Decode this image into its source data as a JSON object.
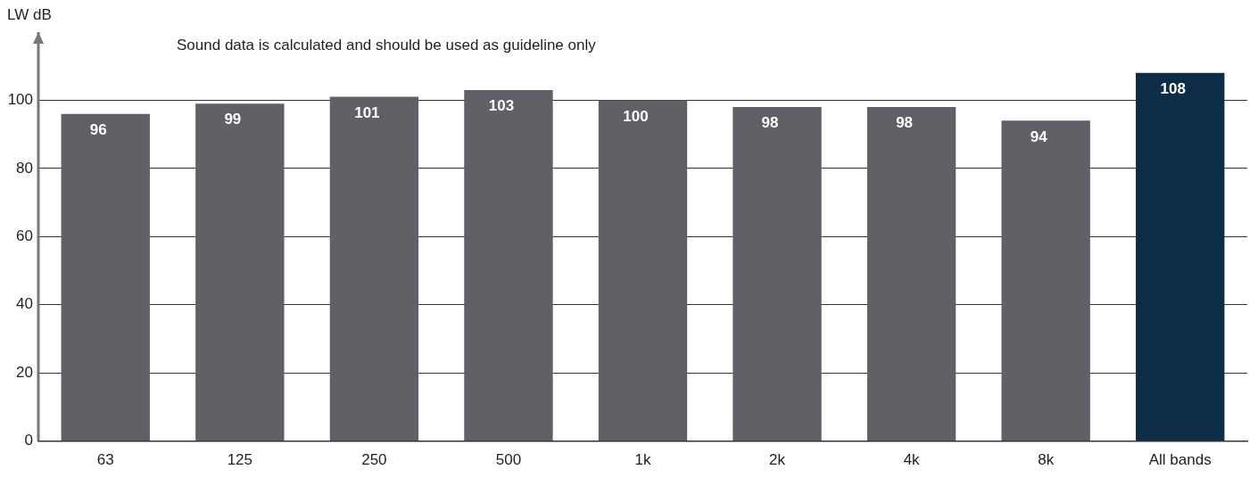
{
  "chart_data": {
    "type": "bar",
    "ylabel": "LW dB",
    "annotations": [
      "Sound data is calculated and should be used as guideline only"
    ],
    "categories": [
      "63",
      "125",
      "250",
      "500",
      "1k",
      "2k",
      "4k",
      "8k",
      "All bands"
    ],
    "values": [
      96,
      99,
      101,
      103,
      100,
      98,
      98,
      94,
      108
    ],
    "colors": [
      "#5f6166",
      "#5f6166",
      "#5f6166",
      "#5f6166",
      "#5f6166",
      "#5f6166",
      "#5f6166",
      "#5f6166",
      "#0b2d45"
    ],
    "ylim": [
      0,
      120
    ],
    "yticks": [
      0,
      20,
      40,
      60,
      80,
      100
    ],
    "grid": "y",
    "data_labels": true
  }
}
